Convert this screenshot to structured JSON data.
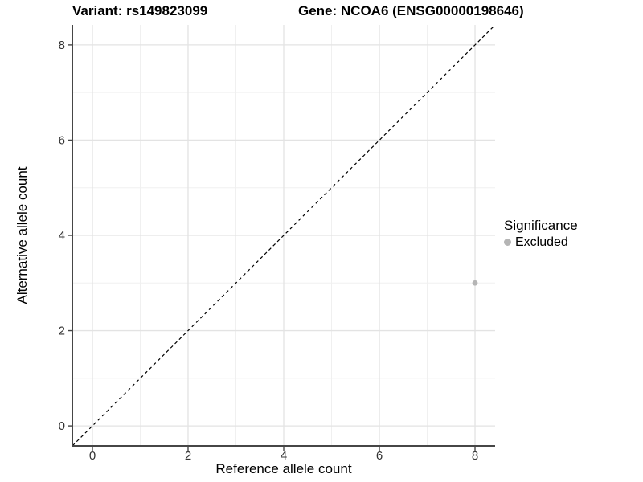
{
  "chart_data": {
    "type": "scatter",
    "title_left": "Variant: rs149823099",
    "title_right": "Gene: NCOA6 (ENSG00000198646)",
    "xlabel": "Reference allele count",
    "ylabel": "Alternative allele count",
    "xlim": [
      -0.42,
      8.42
    ],
    "ylim": [
      -0.42,
      8.42
    ],
    "x_ticks": [
      0,
      2,
      4,
      6,
      8
    ],
    "y_ticks": [
      0,
      2,
      4,
      6,
      8
    ],
    "x_minor_ticks": [
      1,
      3,
      5,
      7
    ],
    "y_minor_ticks": [
      1,
      3,
      5,
      7
    ],
    "grid": "on",
    "identity_line": {
      "slope": 1,
      "intercept": 0,
      "style": "dashed",
      "color": "#000000"
    },
    "series": [
      {
        "name": "Excluded",
        "color": "#b5b5b5",
        "points": [
          {
            "x": 8,
            "y": 3
          }
        ]
      }
    ],
    "legend": {
      "title": "Significance",
      "position": "right",
      "entries": [
        {
          "label": "Excluded",
          "color": "#b5b5b5"
        }
      ]
    },
    "colors": {
      "background": "#ffffff",
      "grid_major": "#e3e3e3",
      "grid_minor": "#f0f0f0",
      "axis": "#464646",
      "tick_text": "#333333",
      "text": "#000000"
    }
  }
}
